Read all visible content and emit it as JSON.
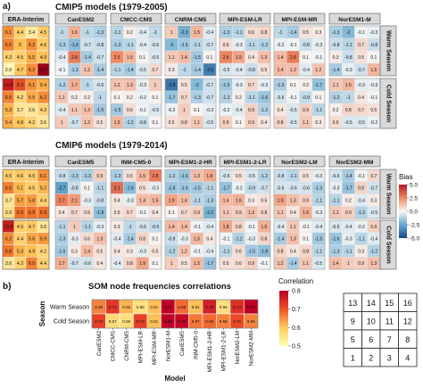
{
  "figure": {
    "panel_a": "a)",
    "panel_b": "b)",
    "cmip5_title": "CMIP5 models (1979-2005)",
    "cmip6_title": "CMIP6 models (1979-2014)",
    "reference_label": "ERA-Interim",
    "season_warm": "Warm Season",
    "season_cold": "Cold Season",
    "bias_legend_title": "Bias",
    "bias_ticks": [
      "5.0",
      "2.5",
      "0.0",
      "-2.5",
      "-5.0"
    ],
    "corr_title": "SOM node frequencies correlations",
    "corr_legend_title": "Correlation",
    "corr_ticks": [
      "0.8",
      "0.7",
      "0.6",
      "0.5"
    ],
    "corr_xlabel": "Model",
    "corr_ylabel": "Season",
    "som_node_grid": [
      [
        13,
        14,
        15,
        16
      ],
      [
        9,
        10,
        11,
        12
      ],
      [
        5,
        6,
        7,
        8
      ],
      [
        1,
        2,
        3,
        4
      ]
    ]
  },
  "chart_data": [
    {
      "type": "heatmap",
      "title": "CMIP5 models (1979-2005)",
      "models": [
        "CanESM2",
        "CMCC-CMS",
        "CNRM-CM5",
        "MPI-ESM-LR",
        "MPI-ESM-MR",
        "NorESM1-M"
      ],
      "reference": {
        "name": "ERA-Interim",
        "Warm Season": [
          [
            6.1,
            4.4,
            3.4,
            4.5
          ],
          [
            6.5,
            5,
            6.2,
            4.6
          ],
          [
            4.3,
            4.5,
            5.5,
            4.9
          ],
          [
            2.9,
            4.7,
            6.2,
            13.7
          ]
        ],
        "Cold Season": [
          [
            10.9,
            8.3,
            6.1,
            5.4
          ],
          [
            6.5,
            4.2,
            5.5,
            6.2
          ],
          [
            5.3,
            3.7,
            3.6,
            4.3
          ],
          [
            5.4,
            4.8,
            4.2,
            3.6
          ]
        ]
      },
      "bias": {
        "CanESM2": {
          "Warm Season": [
            [
              -1,
              1.6,
              -1,
              -1.3
            ],
            [
              -1.3,
              -1.9,
              -0.7,
              -0.8
            ],
            [
              -0.4,
              2.8,
              -1.4,
              -0.7
            ],
            [
              -0.1,
              -1.3,
              1.2,
              -1.4
            ]
          ],
          "Cold Season": [
            [
              -1.2,
              1.7,
              -1,
              -0.6
            ],
            [
              1.1,
              0.2,
              0.2,
              -1
            ],
            [
              -0.4,
              1.1,
              1.3,
              -1.5
            ],
            [
              1,
              -0.7,
              1.2,
              0.5
            ]
          ]
        },
        "CMCC-CMS": {
          "Warm Season": [
            [
              -1.1,
              0.2,
              -0.4,
              -1
            ],
            [
              -1.3,
              -1.1,
              -0.4,
              -0.6
            ],
            [
              2.5,
              1.5,
              0.1,
              -0.5
            ],
            [
              -1.1,
              -1.4,
              -0.5,
              0.7
            ]
          ],
          "Cold Season": [
            [
              1.2,
              1.3,
              -0.3,
              1
            ],
            [
              0.1,
              0.2,
              -0.2,
              0.1
            ],
            [
              -1.5,
              0.6,
              -0.1,
              -0.5
            ],
            [
              1.5,
              -1.2,
              -0.8,
              0.1
            ]
          ]
        },
        "CNRM-CM5": {
          "Warm Season": [
            [
              1,
              -2.3,
              1.5,
              -0.4
            ],
            [
              -2,
              -1.5,
              -1.1,
              -0.7
            ],
            [
              1.1,
              1.4,
              -1.5,
              0.1
            ],
            [
              0.3,
              -1,
              -1.4,
              -3.6
            ]
          ],
          "Cold Season": [
            [
              -3.8,
              0.5,
              -2,
              -0.7
            ],
            [
              -1.7,
              0.7,
              -1.3,
              -0.7
            ],
            [
              -0.2,
              1,
              0.1,
              -0.3
            ],
            [
              0.5,
              0.8,
              1.1,
              -0.5
            ]
          ]
        },
        "MPI-ESM-LR": {
          "Warm Season": [
            [
              -1.3,
              -1.1,
              0.6,
              0.8
            ],
            [
              0.6,
              -0.3,
              -1.1,
              -1.2
            ],
            [
              2.6,
              1.9,
              0.4,
              1.3
            ],
            [
              -0.5,
              -0.4,
              -0.8,
              0.5
            ]
          ],
          "Cold Season": [
            [
              -1.5,
              -0.3,
              0.7,
              -0.3
            ],
            [
              -1.2,
              0.2,
              -1.1,
              -1.6
            ],
            [
              -0.2,
              -0.4,
              0.9,
              -1.2
            ],
            [
              0.9,
              0.1,
              0.9,
              0.4
            ]
          ]
        },
        "MPI-ESM-MR": {
          "Warm Season": [
            [
              -1,
              -1.4,
              0.5,
              0.3
            ],
            [
              -0.2,
              -0.1,
              -0.8,
              -0.3
            ],
            [
              1.4,
              2.8,
              0.1,
              -0.1
            ],
            [
              1.4,
              1.3,
              -0.4,
              1.2
            ]
          ],
          "Cold Season": [
            [
              -1.3,
              0.1,
              0.2,
              -1.7
            ],
            [
              -0.6,
              -0.1,
              -0.9,
              0.1
            ],
            [
              0.4,
              -0.5,
              0.9,
              -1.1
            ],
            [
              0.8,
              -0.5,
              1.1,
              0.3
            ]
          ]
        },
        "NorESM1-M": {
          "Warm Season": [
            [
              -1.3,
              -2,
              -0.1,
              -0.3
            ],
            [
              -0.8,
              -1.1,
              0.7,
              -0.8
            ],
            [
              0.3,
              -0.8,
              0.5,
              0.1
            ],
            [
              -1.4,
              -0.3,
              -0.7,
              1.5
            ]
          ],
          "Cold Season": [
            [
              1.1,
              1.5,
              -0.3,
              -0.3
            ],
            [
              -1.2,
              -1,
              0.4,
              -0.1
            ],
            [
              0.2,
              0.8,
              0.7,
              0.5
            ],
            [
              0.6,
              -0.5,
              -0.5,
              -0.2
            ]
          ]
        }
      }
    },
    {
      "type": "heatmap",
      "title": "CMIP6 models (1979-2014)",
      "models": [
        "CanESM5",
        "INM-CM5-0",
        "MPI-ESM1-2-HR",
        "MPI-ESM1-2-LR",
        "NorESM2-LM",
        "NorESM2-MM"
      ],
      "reference": {
        "name": "ERA-Interim",
        "Warm Season": [
          [
            4.5,
            4.6,
            4.5,
            6.1
          ],
          [
            6.5,
            5.1,
            4.5,
            5.2
          ],
          [
            3.7,
            5.7,
            5.8,
            4.4
          ],
          [
            3.9,
            6.9,
            6.9,
            6.9
          ]
        ],
        "Cold Season": [
          [
            10.9,
            4.5,
            4.7,
            3.6
          ],
          [
            6.2,
            4.4,
            5.6,
            5.9
          ],
          [
            6.8,
            5.3,
            4.9,
            4.2
          ],
          [
            3.6,
            4.3,
            6.5,
            4.4
          ]
        ]
      },
      "bias": {
        "CanESM5": {
          "Warm Season": [
            [
              -0.8,
              -1.3,
              -1.3,
              0.9
            ],
            [
              -2.7,
              -0.8,
              0.1,
              -1.1
            ],
            [
              2.7,
              2.1,
              -0.3,
              -0.8
            ],
            [
              0.4,
              0.7,
              0.6,
              -1.8
            ]
          ],
          "Cold Season": [
            [
              -1.1,
              1,
              -1.1,
              -0.3
            ],
            [
              -1.3,
              -0.3,
              0.6,
              1.3
            ],
            [
              -1.5,
              0.3,
              1.4,
              0.5
            ],
            [
              1.7,
              -0.7,
              -0.6,
              0.4
            ]
          ]
        },
        "INM-CM5-0": {
          "Warm Season": [
            [
              -1.3,
              0.5,
              1.5,
              2.8
            ],
            [
              3.1,
              -1.9,
              0.5,
              -0.3
            ],
            [
              0.4,
              -0.3,
              1.4,
              1.5
            ],
            [
              0.5,
              0.7,
              -0.1,
              0.4
            ]
          ],
          "Cold Season": [
            [
              0.3,
              -1,
              -0.6,
              -0.9
            ],
            [
              -0.4,
              -1.4,
              0.8,
              0.1
            ],
            [
              0.4,
              0.3,
              -0.3,
              0.5
            ],
            [
              -0.4,
              0.8,
              1.9,
              0.1
            ]
          ]
        },
        "MPI-ESM1-2-HR": {
          "Warm Season": [
            [
              -1.2,
              -1.6,
              1.3,
              1.8
            ],
            [
              -1.6,
              -1.5,
              -1.5,
              -1.1
            ],
            [
              1.9,
              1.4,
              -1.1,
              -1.3
            ],
            [
              0.1,
              0.7,
              0.9,
              -2.2
            ]
          ],
          "Cold Season": [
            [
              1.4,
              1.4,
              -0.1,
              -0.4
            ],
            [
              -0.8,
              -0.3,
              1.5,
              0.4
            ],
            [
              -1.2,
              1.2,
              -0.1,
              -0.4
            ],
            [
              1,
              0.5,
              1.5,
              -1.7
            ]
          ]
        },
        "MPI-ESM1-2-LR": {
          "Warm Season": [
            [
              -0.6,
              0.5,
              -0.5,
              -1.2
            ],
            [
              -1.7,
              -0.2,
              -0.9,
              -0.7
            ],
            [
              1.4,
              1.6,
              0.3,
              0.5
            ],
            [
              1.1,
              0.9,
              1.3,
              0.8
            ]
          ],
          "Cold Season": [
            [
              1.8,
              0.8,
              -0.1,
              1.6
            ],
            [
              -0.1,
              -1.2,
              -0.3,
              0.8
            ],
            [
              -1.1,
              0.6,
              -1.5,
              -1.8
            ],
            [
              0.5,
              0.6,
              0.9,
              -0.1
            ]
          ]
        },
        "NorESM2-LM": {
          "Warm Season": [
            [
              -0.8,
              -1.1,
              0.5,
              -0.3
            ],
            [
              -0.6,
              -0.6,
              -0.6,
              -1.3
            ],
            [
              1.9,
              1.3,
              0.9,
              -1.1
            ],
            [
              1.1,
              0.4,
              1.6,
              -0.3
            ]
          ],
          "Cold Season": [
            [
              -0.4,
              1.1,
              -0.1,
              -0.4
            ],
            [
              -1.4,
              1.3,
              0.1,
              -1.5
            ],
            [
              0.8,
              0.4,
              0.8,
              -1.1
            ],
            [
              1.2,
              -1.4,
              1.1,
              -0.5
            ]
          ]
        },
        "NorESM2-MM": {
          "Warm Season": [
            [
              -0.6,
              -1.4,
              -0.1,
              0.7
            ],
            [
              -0.3,
              -1.7,
              0.8,
              -0.7
            ],
            [
              -1.1,
              0.2,
              -0.4,
              0.3
            ],
            [
              1.1,
              0.9,
              -1.2,
              -0.5
            ]
          ],
          "Cold Season": [
            [
              -0.5,
              -0.4,
              -0.2,
              0.9
            ],
            [
              -1.6,
              -0.3,
              -1.1,
              -0.4
            ],
            [
              -1.3,
              -1.1,
              0.3,
              -1.2
            ],
            [
              1.4,
              1,
              0.9,
              1.3
            ]
          ]
        }
      }
    },
    {
      "type": "heatmap",
      "title": "SOM node frequencies correlations",
      "xlabel": "Model",
      "ylabel": "Season",
      "categories": [
        "CanESM2",
        "CMCC-CMS",
        "CNRM-CM5",
        "MPI-ESM-LR",
        "MPI-ESM-MR",
        "NorESM1-M",
        "CanESM5",
        "INM-CM5-0",
        "MPI-ESM1-2-HR",
        "MPI-ESM1-2-LR",
        "NorESM2-LM",
        "NorESM2-MM"
      ],
      "rows": [
        "Warm Season",
        "Cold Season"
      ],
      "values": [
        [
          0.66,
          0.73,
          0.62,
          0.56,
          0.61,
          0.84,
          0.68,
          0.61,
          0.76,
          0.56,
          0.74,
          0.81
        ],
        [
          0.72,
          0.57,
          0.56,
          0.72,
          0.61,
          0.84,
          0.79,
          0.67,
          0.68,
          0.66,
          0.71,
          0.66
        ]
      ],
      "colorbar_range": [
        0.5,
        0.8
      ]
    }
  ]
}
